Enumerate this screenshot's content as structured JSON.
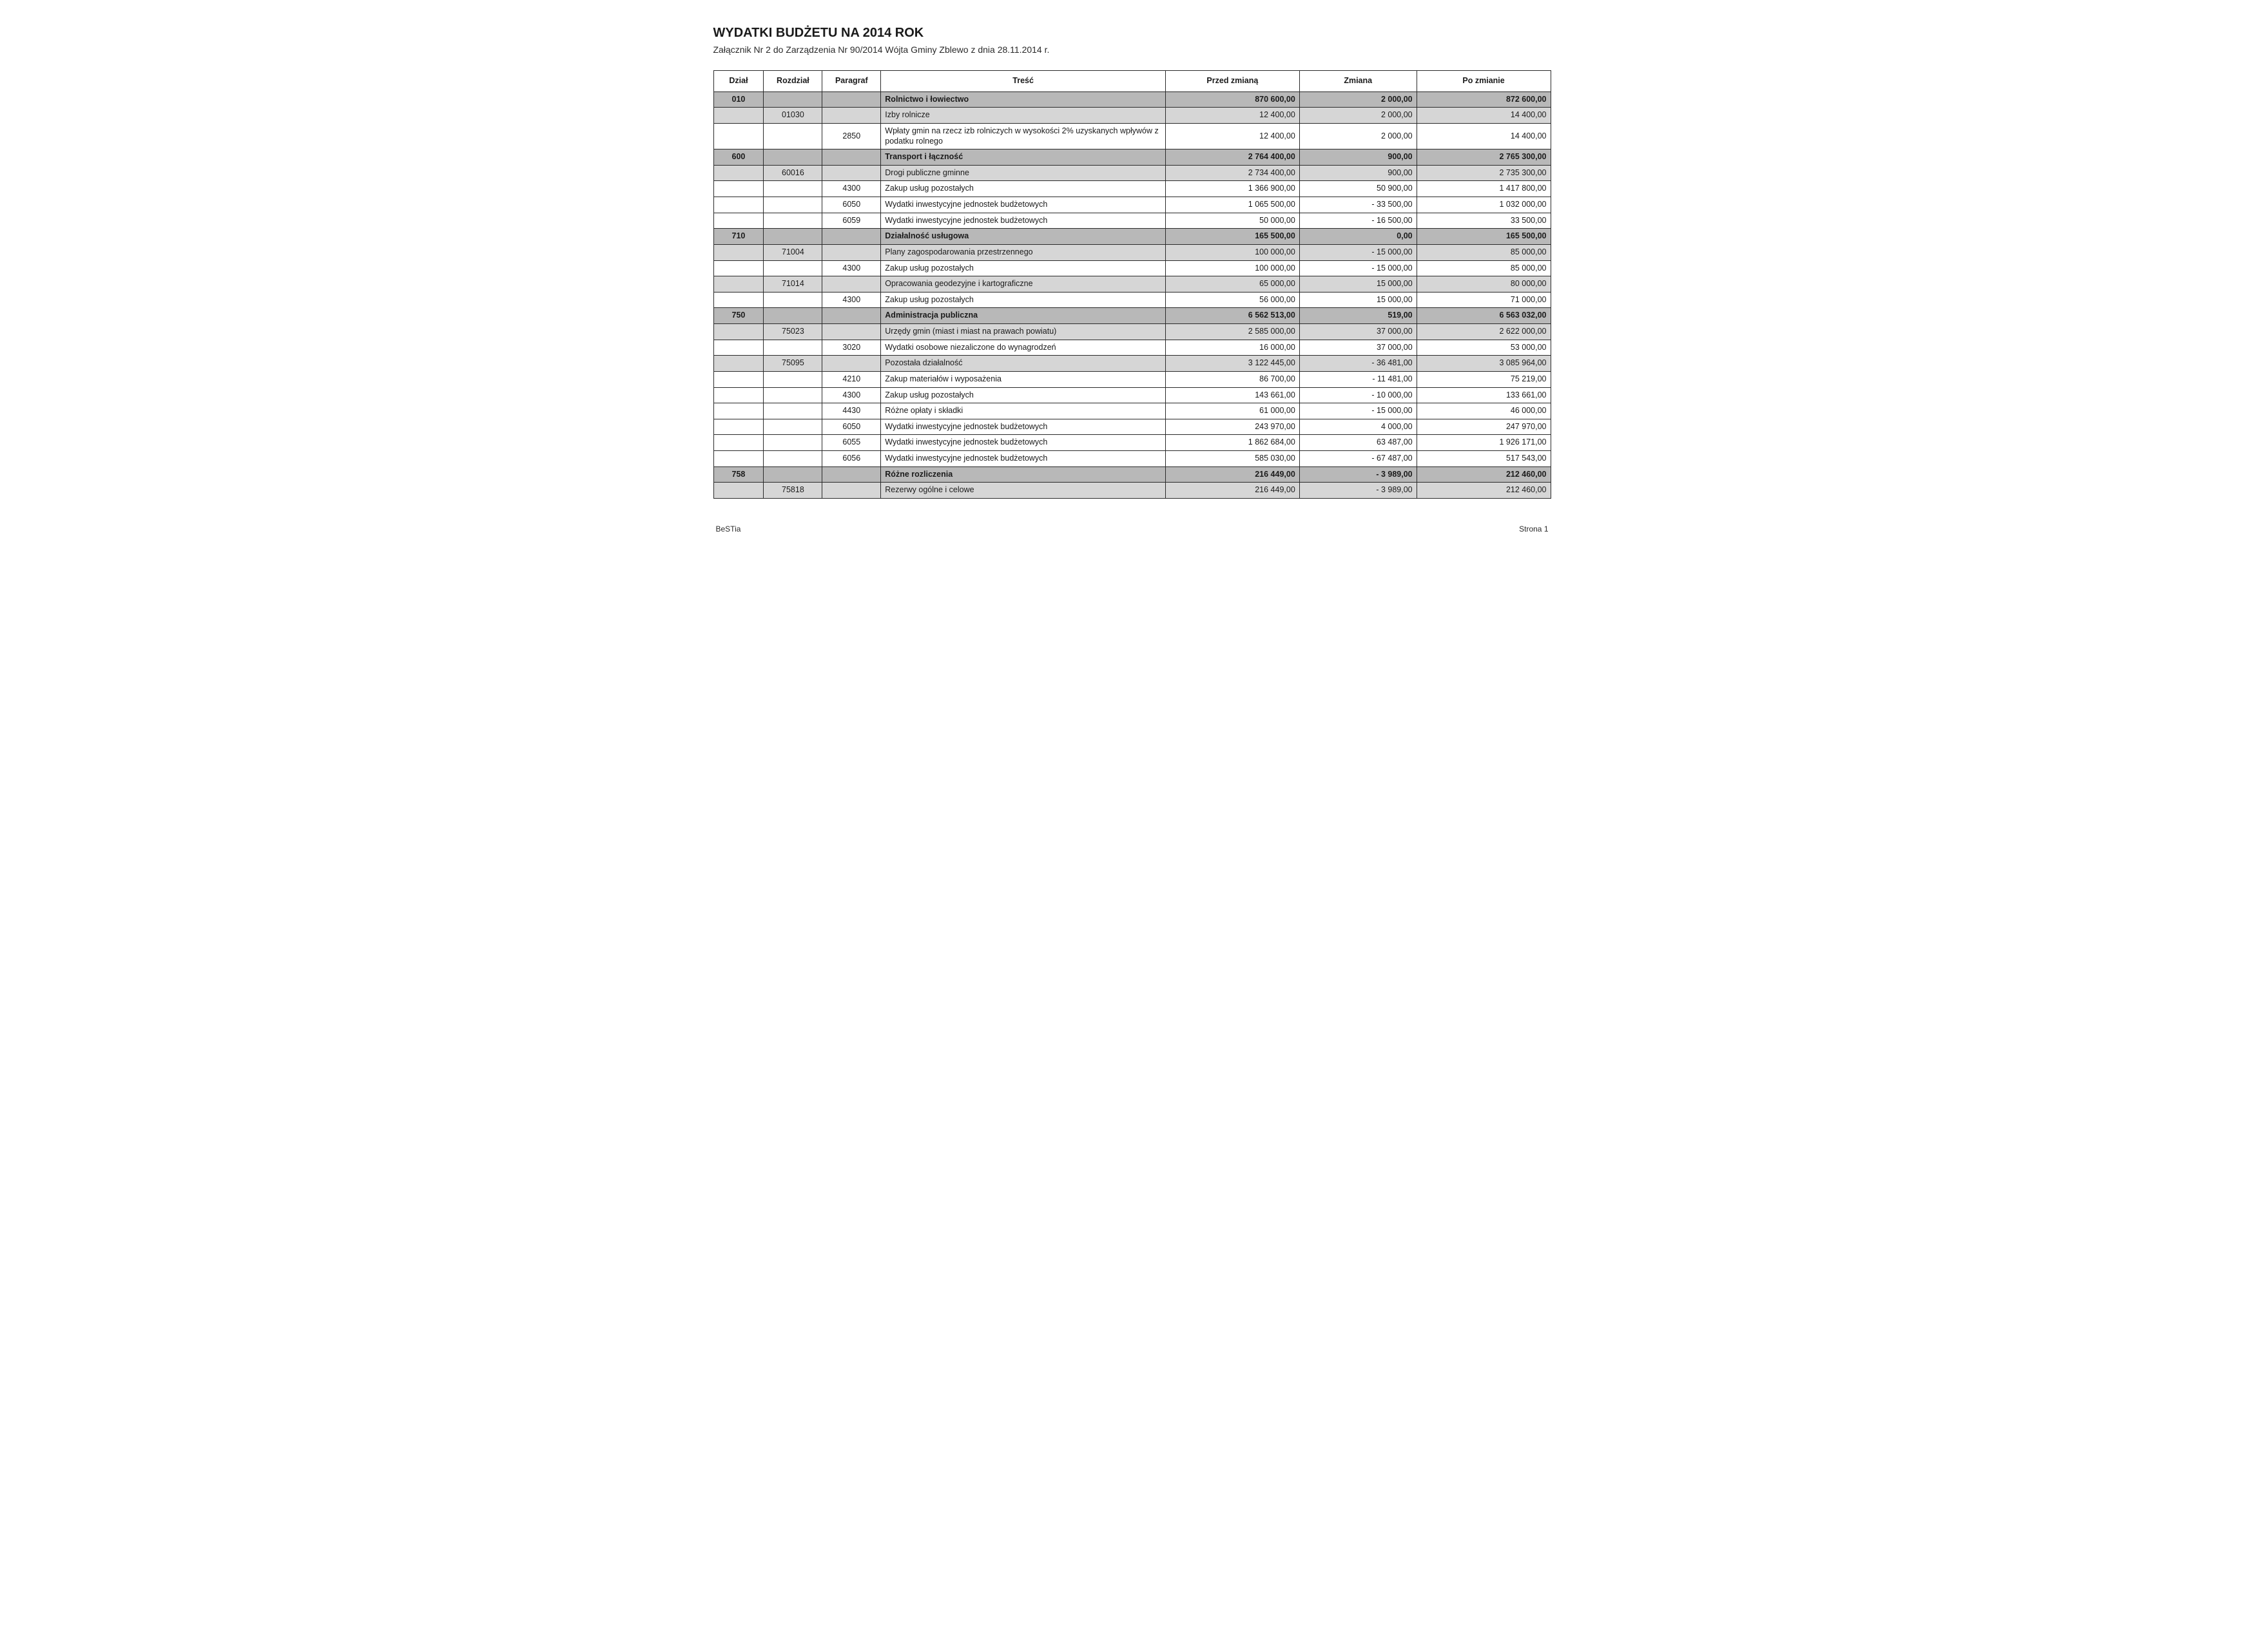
{
  "title": "WYDATKI BUDŻETU NA 2014 ROK",
  "subtitle": "Załącznik Nr 2 do Zarządzenia Nr 90/2014 Wójta Gminy Zblewo z dnia 28.11.2014 r.",
  "columns": {
    "dzial": "Dział",
    "rozdzial": "Rozdział",
    "paragraf": "Paragraf",
    "tresc": "Treść",
    "przed": "Przed zmianą",
    "zmiana": "Zmiana",
    "po": "Po zmianie"
  },
  "column_widths_pct": [
    6,
    7,
    7,
    34,
    16,
    14,
    16
  ],
  "colors": {
    "border": "#2a2a2a",
    "bg_page": "#ffffff",
    "bg_dzial": "#b8b8b8",
    "bg_rozdzial": "#d6d6d6",
    "bg_paragraf": "#ffffff",
    "text": "#1a1a1a"
  },
  "typography": {
    "title_pt": 20,
    "subtitle_pt": 14,
    "table_pt": 12.5,
    "footer_pt": 12,
    "font_family": "Arial"
  },
  "rows": [
    {
      "level": "dzial",
      "dzial": "010",
      "rozdzial": "",
      "paragraf": "",
      "tresc": "Rolnictwo i łowiectwo",
      "przed": "870 600,00",
      "zmiana": "2 000,00",
      "po": "872 600,00"
    },
    {
      "level": "rozdzial",
      "dzial": "",
      "rozdzial": "01030",
      "paragraf": "",
      "tresc": "Izby rolnicze",
      "przed": "12 400,00",
      "zmiana": "2 000,00",
      "po": "14 400,00"
    },
    {
      "level": "paragraf",
      "dzial": "",
      "rozdzial": "",
      "paragraf": "2850",
      "tresc": "Wpłaty gmin na rzecz izb rolniczych w wysokości 2% uzyskanych wpływów z podatku rolnego",
      "przed": "12 400,00",
      "zmiana": "2 000,00",
      "po": "14 400,00"
    },
    {
      "level": "dzial",
      "dzial": "600",
      "rozdzial": "",
      "paragraf": "",
      "tresc": "Transport i łączność",
      "przed": "2 764 400,00",
      "zmiana": "900,00",
      "po": "2 765 300,00"
    },
    {
      "level": "rozdzial",
      "dzial": "",
      "rozdzial": "60016",
      "paragraf": "",
      "tresc": "Drogi publiczne gminne",
      "przed": "2 734 400,00",
      "zmiana": "900,00",
      "po": "2 735 300,00"
    },
    {
      "level": "paragraf",
      "dzial": "",
      "rozdzial": "",
      "paragraf": "4300",
      "tresc": "Zakup usług pozostałych",
      "przed": "1 366 900,00",
      "zmiana": "50 900,00",
      "po": "1 417 800,00"
    },
    {
      "level": "paragraf",
      "dzial": "",
      "rozdzial": "",
      "paragraf": "6050",
      "tresc": "Wydatki inwestycyjne jednostek budżetowych",
      "przed": "1 065 500,00",
      "zmiana": "- 33 500,00",
      "po": "1 032 000,00"
    },
    {
      "level": "paragraf",
      "dzial": "",
      "rozdzial": "",
      "paragraf": "6059",
      "tresc": "Wydatki inwestycyjne jednostek budżetowych",
      "przed": "50 000,00",
      "zmiana": "- 16 500,00",
      "po": "33 500,00"
    },
    {
      "level": "dzial",
      "dzial": "710",
      "rozdzial": "",
      "paragraf": "",
      "tresc": "Działalność usługowa",
      "przed": "165 500,00",
      "zmiana": "0,00",
      "po": "165 500,00"
    },
    {
      "level": "rozdzial",
      "dzial": "",
      "rozdzial": "71004",
      "paragraf": "",
      "tresc": "Plany zagospodarowania przestrzennego",
      "przed": "100 000,00",
      "zmiana": "- 15 000,00",
      "po": "85 000,00"
    },
    {
      "level": "paragraf",
      "dzial": "",
      "rozdzial": "",
      "paragraf": "4300",
      "tresc": "Zakup usług pozostałych",
      "przed": "100 000,00",
      "zmiana": "- 15 000,00",
      "po": "85 000,00"
    },
    {
      "level": "rozdzial",
      "dzial": "",
      "rozdzial": "71014",
      "paragraf": "",
      "tresc": "Opracowania geodezyjne i kartograficzne",
      "przed": "65 000,00",
      "zmiana": "15 000,00",
      "po": "80 000,00"
    },
    {
      "level": "paragraf",
      "dzial": "",
      "rozdzial": "",
      "paragraf": "4300",
      "tresc": "Zakup usług pozostałych",
      "przed": "56 000,00",
      "zmiana": "15 000,00",
      "po": "71 000,00"
    },
    {
      "level": "dzial",
      "dzial": "750",
      "rozdzial": "",
      "paragraf": "",
      "tresc": "Administracja publiczna",
      "przed": "6 562 513,00",
      "zmiana": "519,00",
      "po": "6 563 032,00"
    },
    {
      "level": "rozdzial",
      "dzial": "",
      "rozdzial": "75023",
      "paragraf": "",
      "tresc": "Urzędy gmin (miast i miast na prawach powiatu)",
      "przed": "2 585 000,00",
      "zmiana": "37 000,00",
      "po": "2 622 000,00"
    },
    {
      "level": "paragraf",
      "dzial": "",
      "rozdzial": "",
      "paragraf": "3020",
      "tresc": "Wydatki osobowe niezaliczone do wynagrodzeń",
      "przed": "16 000,00",
      "zmiana": "37 000,00",
      "po": "53 000,00"
    },
    {
      "level": "rozdzial",
      "dzial": "",
      "rozdzial": "75095",
      "paragraf": "",
      "tresc": "Pozostała działalność",
      "przed": "3 122 445,00",
      "zmiana": "- 36 481,00",
      "po": "3 085 964,00"
    },
    {
      "level": "paragraf",
      "dzial": "",
      "rozdzial": "",
      "paragraf": "4210",
      "tresc": "Zakup materiałów i wyposażenia",
      "przed": "86 700,00",
      "zmiana": "- 11 481,00",
      "po": "75 219,00"
    },
    {
      "level": "paragraf",
      "dzial": "",
      "rozdzial": "",
      "paragraf": "4300",
      "tresc": "Zakup usług pozostałych",
      "przed": "143 661,00",
      "zmiana": "- 10 000,00",
      "po": "133 661,00"
    },
    {
      "level": "paragraf",
      "dzial": "",
      "rozdzial": "",
      "paragraf": "4430",
      "tresc": "Różne opłaty i składki",
      "przed": "61 000,00",
      "zmiana": "- 15 000,00",
      "po": "46 000,00"
    },
    {
      "level": "paragraf",
      "dzial": "",
      "rozdzial": "",
      "paragraf": "6050",
      "tresc": "Wydatki inwestycyjne jednostek budżetowych",
      "przed": "243 970,00",
      "zmiana": "4 000,00",
      "po": "247 970,00"
    },
    {
      "level": "paragraf",
      "dzial": "",
      "rozdzial": "",
      "paragraf": "6055",
      "tresc": "Wydatki inwestycyjne jednostek budżetowych",
      "przed": "1 862 684,00",
      "zmiana": "63 487,00",
      "po": "1 926 171,00"
    },
    {
      "level": "paragraf",
      "dzial": "",
      "rozdzial": "",
      "paragraf": "6056",
      "tresc": "Wydatki inwestycyjne jednostek budżetowych",
      "przed": "585 030,00",
      "zmiana": "- 67 487,00",
      "po": "517 543,00"
    },
    {
      "level": "dzial",
      "dzial": "758",
      "rozdzial": "",
      "paragraf": "",
      "tresc": "Różne rozliczenia",
      "przed": "216 449,00",
      "zmiana": "- 3 989,00",
      "po": "212 460,00"
    },
    {
      "level": "rozdzial",
      "dzial": "",
      "rozdzial": "75818",
      "paragraf": "",
      "tresc": "Rezerwy ogólne i celowe",
      "przed": "216 449,00",
      "zmiana": "- 3 989,00",
      "po": "212 460,00"
    }
  ],
  "footer": {
    "left": "BeSTia",
    "right": "Strona 1"
  }
}
